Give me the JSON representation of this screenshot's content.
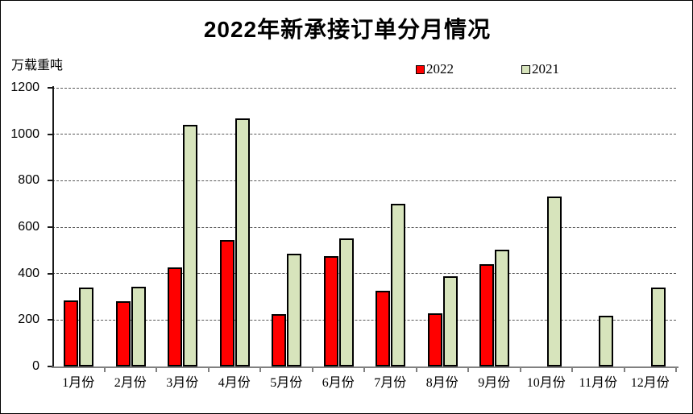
{
  "chart_data": {
    "type": "bar",
    "title": "2022年新承接订单分月情况",
    "ylabel": "万载重吨",
    "xlabel": "",
    "categories": [
      "1月份",
      "2月份",
      "3月份",
      "4月份",
      "5月份",
      "6月份",
      "7月份",
      "8月份",
      "9月份",
      "10月份",
      "11月份",
      "12月份"
    ],
    "series": [
      {
        "name": "2022",
        "color": "#FF0000",
        "values": [
          283,
          282,
          428,
          546,
          227,
          476,
          327,
          230,
          441,
          null,
          null,
          null
        ]
      },
      {
        "name": "2021",
        "color": "#D7E4BC",
        "values": [
          340,
          343,
          1039,
          1067,
          487,
          550,
          700,
          390,
          503,
          732,
          218,
          341
        ]
      }
    ],
    "ylim": [
      0,
      1200
    ],
    "ytick_step": 200,
    "grid": true,
    "grid_style": "dashed",
    "legend_position": "top-center"
  }
}
